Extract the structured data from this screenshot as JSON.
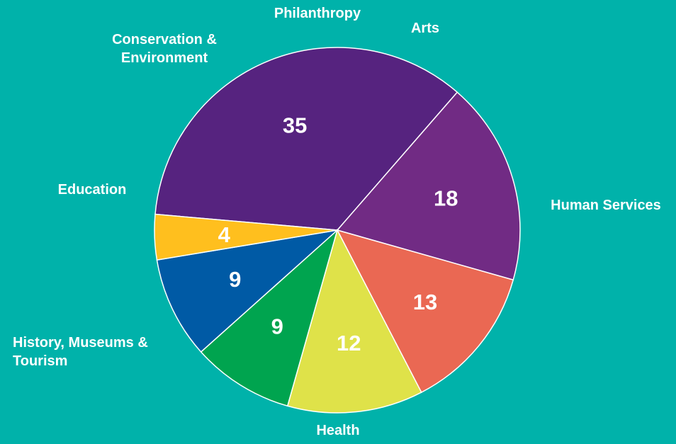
{
  "chart_data": {
    "type": "pie",
    "title": "",
    "slices": [
      {
        "label": [
          "Human Services"
        ],
        "value": 35,
        "value_label": "35",
        "color": "#56237F"
      },
      {
        "label": [
          "Health"
        ],
        "value": 18,
        "value_label": "18",
        "color": "#712B84"
      },
      {
        "label": [
          "History, Museums &",
          "Tourism"
        ],
        "value": 13,
        "value_label": "13",
        "color": "#EA6853"
      },
      {
        "label": [
          "Education"
        ],
        "value": 12,
        "value_label": "12",
        "color": "#DFE249"
      },
      {
        "label": [
          "Conservation &",
          "Environment"
        ],
        "value": 9,
        "value_label": "9",
        "color": "#00A44F"
      },
      {
        "label": [
          "Philanthropy"
        ],
        "value": 9,
        "value_label": "9",
        "color": "#005AA5"
      },
      {
        "label": [
          "Arts"
        ],
        "value": 4,
        "value_label": "4",
        "color": "#FFBF1E"
      }
    ]
  }
}
